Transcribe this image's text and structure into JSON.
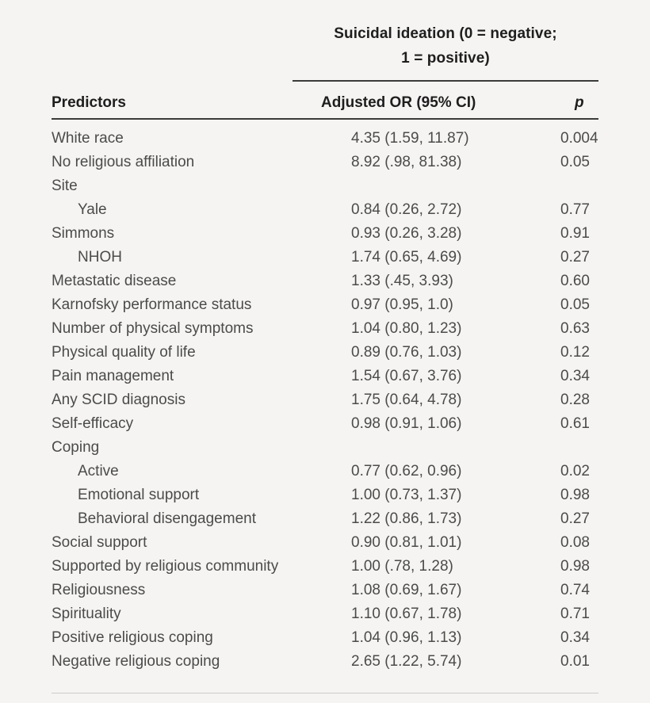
{
  "table": {
    "spanner_title_line1": "Suicidal ideation (0 = negative;",
    "spanner_title_line2": "1 = positive)",
    "columns": {
      "predictors": "Predictors",
      "or": "Adjusted OR (95% CI)",
      "p": "p"
    },
    "rows": [
      {
        "predictor": "White race",
        "indent": false,
        "or": "4.35 (1.59, 11.87)",
        "p": "0.004"
      },
      {
        "predictor": "No religious affiliation",
        "indent": false,
        "or": "8.92 (.98, 81.38)",
        "p": "0.05"
      },
      {
        "predictor": "Site",
        "indent": false,
        "or": "",
        "p": ""
      },
      {
        "predictor": "Yale",
        "indent": true,
        "or": "0.84 (0.26, 2.72)",
        "p": "0.77"
      },
      {
        "predictor": "Simmons",
        "indent": false,
        "or": "0.93 (0.26, 3.28)",
        "p": "0.91"
      },
      {
        "predictor": "NHOH",
        "indent": true,
        "or": "1.74 (0.65, 4.69)",
        "p": "0.27"
      },
      {
        "predictor": "Metastatic disease",
        "indent": false,
        "or": "1.33 (.45, 3.93)",
        "p": "0.60"
      },
      {
        "predictor": "Karnofsky performance status",
        "indent": false,
        "or": "0.97 (0.95, 1.0)",
        "p": "0.05"
      },
      {
        "predictor": "Number of physical symptoms",
        "indent": false,
        "or": "1.04 (0.80, 1.23)",
        "p": "0.63"
      },
      {
        "predictor": "Physical quality of life",
        "indent": false,
        "or": "0.89 (0.76, 1.03)",
        "p": "0.12"
      },
      {
        "predictor": "Pain management",
        "indent": false,
        "or": "1.54 (0.67, 3.76)",
        "p": "0.34"
      },
      {
        "predictor": "Any SCID diagnosis",
        "indent": false,
        "or": "1.75 (0.64, 4.78)",
        "p": "0.28"
      },
      {
        "predictor": "Self-efficacy",
        "indent": false,
        "or": "0.98 (0.91, 1.06)",
        "p": "0.61"
      },
      {
        "predictor": "Coping",
        "indent": false,
        "or": "",
        "p": ""
      },
      {
        "predictor": "Active",
        "indent": true,
        "or": "0.77 (0.62, 0.96)",
        "p": "0.02"
      },
      {
        "predictor": "Emotional support",
        "indent": true,
        "or": "1.00 (0.73, 1.37)",
        "p": "0.98"
      },
      {
        "predictor": "Behavioral disengagement",
        "indent": true,
        "or": "1.22 (0.86, 1.73)",
        "p": "0.27"
      },
      {
        "predictor": "Social support",
        "indent": false,
        "or": "0.90 (0.81, 1.01)",
        "p": "0.08"
      },
      {
        "predictor": "Supported by religious community",
        "indent": false,
        "or": "1.00 (.78, 1.28)",
        "p": "0.98"
      },
      {
        "predictor": "Religiousness",
        "indent": false,
        "or": "1.08 (0.69, 1.67)",
        "p": "0.74"
      },
      {
        "predictor": "Spirituality",
        "indent": false,
        "or": "1.10 (0.67, 1.78)",
        "p": "0.71"
      },
      {
        "predictor": "Positive religious coping",
        "indent": false,
        "or": "1.04 (0.96, 1.13)",
        "p": "0.34"
      },
      {
        "predictor": "Negative religious coping",
        "indent": false,
        "or": "2.65 (1.22, 5.74)",
        "p": "0.01"
      }
    ]
  },
  "colors": {
    "background": "#f5f4f2",
    "rule_dark": "#3b3b3b",
    "rule_light": "#cbcbc9",
    "body_text": "#4b4b49",
    "header_text": "#1e1e1e"
  }
}
